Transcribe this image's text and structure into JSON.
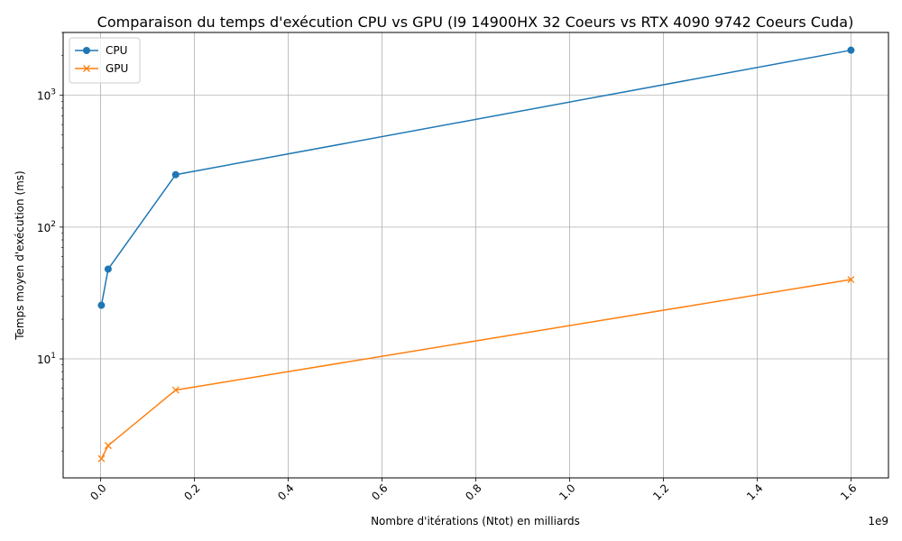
{
  "chart_data": {
    "type": "line",
    "title": "Comparaison du temps d'exécution CPU vs GPU (I9 14900HX 32 Coeurs vs RTX 4090 9742 Coeurs Cuda)",
    "xlabel": "Nombre d'itérations (Ntot) en milliards",
    "ylabel": "Temps moyen d'exécution (ms)",
    "x_offset_text": "1e9",
    "x": [
      1600000,
      16000000,
      160000000,
      1600000000
    ],
    "xlim": [
      -80000000,
      1680000000
    ],
    "ylim": [
      1.25,
      3000
    ],
    "yscale": "log",
    "grid": true,
    "legend_position": "upper-left",
    "x_ticks": [
      {
        "value": 0,
        "label": "0.0"
      },
      {
        "value": 200000000,
        "label": "0.2"
      },
      {
        "value": 400000000,
        "label": "0.4"
      },
      {
        "value": 600000000,
        "label": "0.6"
      },
      {
        "value": 800000000,
        "label": "0.8"
      },
      {
        "value": 1000000000,
        "label": "1.0"
      },
      {
        "value": 1200000000,
        "label": "1.2"
      },
      {
        "value": 1400000000,
        "label": "1.4"
      },
      {
        "value": 1600000000,
        "label": "1.6"
      }
    ],
    "y_ticks": [
      {
        "value": 10,
        "base": "10",
        "exp": "1"
      },
      {
        "value": 100,
        "base": "10",
        "exp": "2"
      },
      {
        "value": 1000,
        "base": "10",
        "exp": "3"
      }
    ],
    "series": [
      {
        "name": "CPU",
        "marker": "circle",
        "color": "#1f77b4",
        "values": [
          25.5,
          48,
          250,
          2200
        ]
      },
      {
        "name": "GPU",
        "marker": "x",
        "color": "#ff7f0e",
        "values": [
          1.75,
          2.2,
          5.8,
          40
        ]
      }
    ]
  }
}
